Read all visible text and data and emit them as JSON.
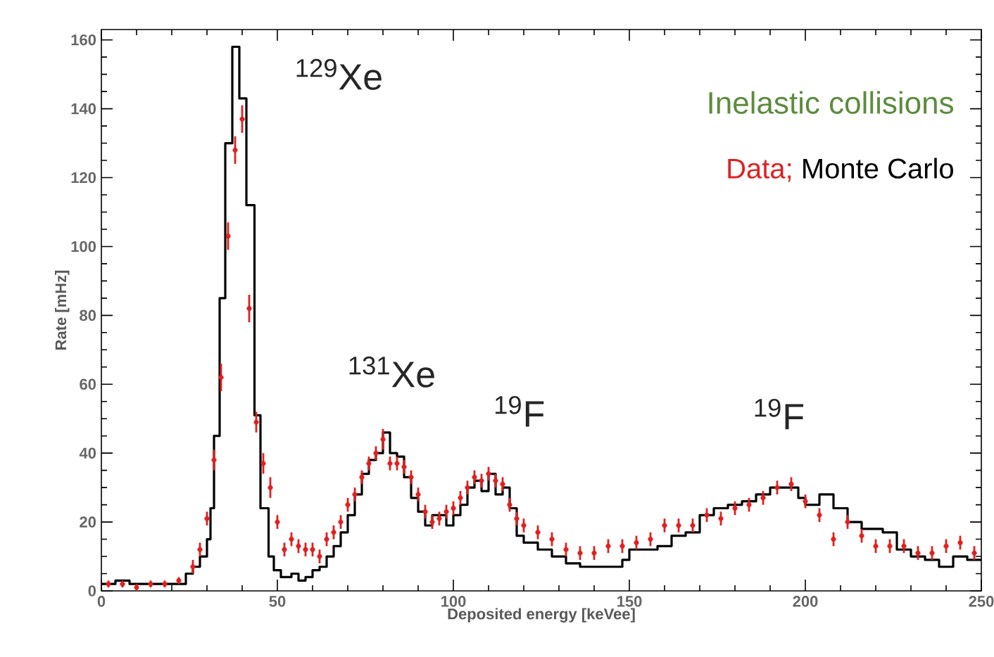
{
  "chart_data": {
    "type": "step",
    "title": "Inelastic collisions",
    "xlabel": "Deposited energy [keVee]",
    "ylabel": "Rate [mHz]",
    "xlim": [
      0,
      250
    ],
    "ylim": [
      0,
      163
    ],
    "xticks": [
      0,
      50,
      100,
      150,
      200,
      250
    ],
    "yticks": [
      0,
      20,
      40,
      60,
      80,
      100,
      120,
      140,
      160
    ],
    "legend": "top right",
    "grid": false,
    "annotations": [
      "$^{129}$Xe",
      "$^{131}$Xe",
      "$^{19}$F",
      "$^{19}$F"
    ],
    "series": [
      {
        "name": "Data;",
        "type": "scatter",
        "color": "#e02020",
        "x": [
          2,
          6,
          10,
          14,
          18,
          22,
          26,
          28,
          30,
          32,
          34,
          36,
          38,
          40,
          42,
          44,
          46,
          48,
          50,
          52,
          54,
          56,
          58,
          60,
          62,
          64,
          66,
          68,
          70,
          72,
          74,
          76,
          78,
          80,
          82,
          84,
          86,
          88,
          90,
          92,
          94,
          96,
          98,
          100,
          102,
          104,
          106,
          108,
          110,
          112,
          114,
          116,
          118,
          120,
          124,
          128,
          132,
          136,
          140,
          144,
          148,
          152,
          156,
          160,
          164,
          168,
          172,
          176,
          180,
          184,
          188,
          192,
          196,
          200,
          204,
          208,
          212,
          216,
          220,
          224,
          228,
          232,
          236,
          240,
          244,
          248
        ],
        "values": [
          2,
          2,
          1,
          2,
          2,
          3,
          7,
          12,
          21,
          38,
          62,
          103,
          128,
          137,
          82,
          49,
          37,
          30,
          20,
          12,
          15,
          13,
          12,
          12,
          10,
          15,
          17,
          20,
          25,
          28,
          33,
          37,
          40,
          44,
          37,
          37,
          36,
          33,
          28,
          23,
          20,
          21,
          23,
          24,
          27,
          30,
          33,
          32,
          34,
          32,
          31,
          25,
          21,
          19,
          17,
          15,
          12,
          11,
          11,
          13,
          13,
          14,
          15,
          19,
          19,
          19,
          22,
          21,
          24,
          25,
          27,
          30,
          31,
          26,
          22,
          15,
          20,
          16,
          13,
          13,
          13,
          11,
          11,
          13,
          14,
          11
        ],
        "errors": [
          1,
          1,
          1,
          1,
          1,
          1,
          2,
          2,
          2,
          3,
          4,
          4,
          4,
          4,
          4,
          3,
          3,
          3,
          2,
          2,
          2,
          2,
          2,
          2,
          2,
          2,
          2,
          2,
          2,
          2,
          2,
          2,
          2,
          3,
          2,
          2,
          2,
          2,
          2,
          2,
          2,
          2,
          2,
          2,
          2,
          2,
          2,
          2,
          2,
          2,
          2,
          2,
          2,
          2,
          2,
          2,
          2,
          2,
          2,
          2,
          2,
          2,
          2,
          2,
          2,
          2,
          2,
          2,
          2,
          2,
          2,
          2,
          2,
          2,
          2,
          2,
          2,
          2,
          2,
          2,
          2,
          2,
          2,
          2,
          2,
          2
        ],
        "marker": "circle"
      },
      {
        "name": "Monte Carlo",
        "color": "#000000",
        "x": [
          0,
          4,
          8,
          14,
          20,
          24,
          26,
          28,
          30,
          31,
          32,
          33.6,
          35.2,
          37.2,
          39.2,
          41.2,
          43.5,
          45.2,
          47.5,
          49,
          51,
          54,
          56,
          58,
          60,
          62,
          64,
          66,
          68,
          70,
          72,
          74,
          76,
          78,
          80,
          82,
          84,
          86,
          88,
          90,
          92,
          94,
          96,
          98,
          100,
          102,
          104,
          106,
          108,
          110,
          112,
          114,
          116,
          118,
          120,
          124,
          128,
          132,
          136,
          140,
          144,
          148,
          150,
          154,
          158,
          162,
          166,
          170,
          174,
          178,
          182,
          186,
          190,
          194,
          198,
          200,
          204,
          208,
          212,
          216,
          222,
          226,
          230,
          234,
          238,
          242,
          246,
          250
        ],
        "values": [
          2,
          3,
          2,
          2,
          2,
          5,
          7,
          10,
          15,
          24,
          45,
          85,
          130,
          158,
          143,
          112,
          51,
          24,
          10,
          6,
          4,
          5,
          3,
          4,
          6,
          7,
          10,
          13,
          17,
          22,
          28,
          34,
          38,
          40,
          46,
          40,
          39,
          33,
          27,
          23,
          19,
          22,
          22,
          19,
          22,
          25,
          30,
          32,
          29,
          34,
          28,
          30,
          24,
          16,
          14,
          12,
          10,
          8,
          7,
          7,
          7,
          9,
          12,
          12,
          13,
          16,
          17,
          22,
          24,
          25,
          26,
          28,
          30,
          30,
          27,
          25,
          28,
          24,
          20,
          18,
          17,
          12,
          10,
          9,
          7,
          10,
          9,
          9
        ]
      }
    ]
  }
}
